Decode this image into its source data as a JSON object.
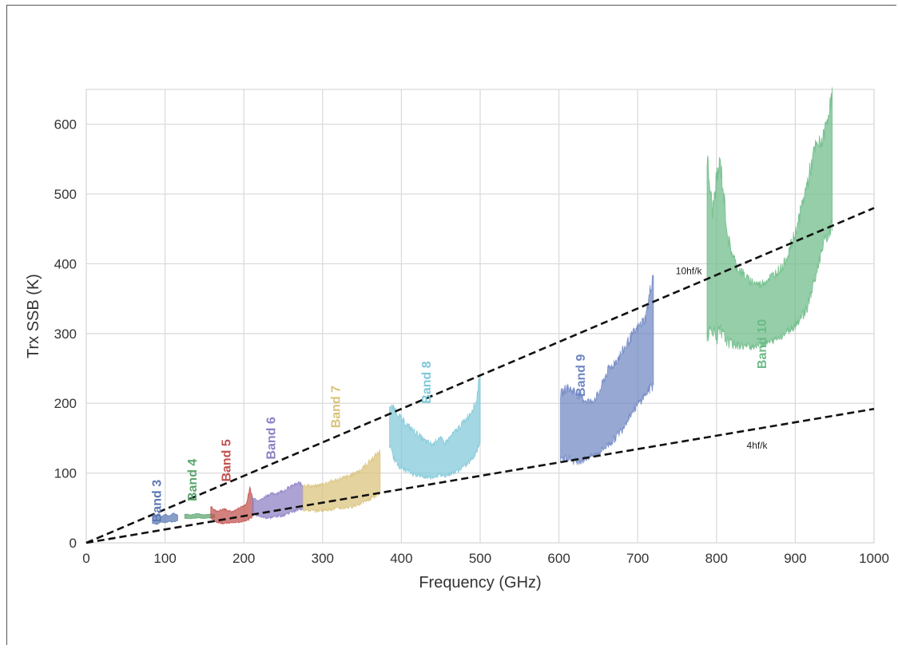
{
  "chart_data": {
    "type": "area",
    "title": "",
    "xlabel": "Frequency  (GHz)",
    "ylabel": "Trx SSB  (K)",
    "xlim": [
      0,
      1000
    ],
    "ylim": [
      0,
      650
    ],
    "xticks": [
      0,
      100,
      200,
      300,
      400,
      500,
      600,
      700,
      800,
      900,
      1000
    ],
    "yticks": [
      0,
      100,
      200,
      300,
      400,
      500,
      600
    ],
    "grid": true,
    "background": "#ffffff",
    "grid_color": "#d9d9d9",
    "reference_lines": [
      {
        "name": "10hf/k",
        "x": [
          0,
          1000
        ],
        "y": [
          0,
          480
        ],
        "style": "dashed",
        "color": "#111111",
        "label_at": [
          730,
          385
        ]
      },
      {
        "name": "4hf/k",
        "x": [
          0,
          1000
        ],
        "y": [
          0,
          192
        ],
        "style": "dashed",
        "color": "#111111",
        "label_at": [
          820,
          135
        ]
      }
    ],
    "series": [
      {
        "name": "Band 3",
        "color": "#5a78b4",
        "label_at": [
          95,
          60
        ],
        "x": [
          84,
          90,
          95,
          100,
          105,
          110,
          116
        ],
        "upper": [
          36,
          40,
          37,
          41,
          38,
          42,
          40
        ],
        "lower": [
          28,
          27,
          30,
          29,
          31,
          30,
          32
        ]
      },
      {
        "name": "Band 4",
        "color": "#5aa56e",
        "label_at": [
          140,
          90
        ],
        "x": [
          125,
          133,
          141,
          150,
          158,
          163
        ],
        "upper": [
          41,
          40,
          42,
          40,
          41,
          40
        ],
        "lower": [
          35,
          35,
          36,
          35,
          36,
          36
        ]
      },
      {
        "name": "Band 5",
        "color": "#c0504d",
        "label_at": [
          183,
          118
        ],
        "x": [
          158,
          165,
          175,
          185,
          195,
          203,
          208,
          212
        ],
        "upper": [
          52,
          45,
          48,
          44,
          50,
          55,
          78,
          60
        ],
        "lower": [
          36,
          30,
          28,
          29,
          30,
          33,
          35,
          40
        ]
      },
      {
        "name": "Band 6",
        "color": "#8c7ec4",
        "label_at": [
          240,
          150
        ],
        "x": [
          211,
          220,
          230,
          240,
          250,
          260,
          270,
          275
        ],
        "upper": [
          65,
          60,
          68,
          70,
          74,
          80,
          85,
          82
        ],
        "lower": [
          42,
          38,
          36,
          38,
          40,
          45,
          48,
          50
        ]
      },
      {
        "name": "Band 7",
        "color": "#d9c27a",
        "label_at": [
          322,
          195
        ],
        "x": [
          275,
          290,
          305,
          320,
          335,
          350,
          362,
          373
        ],
        "upper": [
          82,
          80,
          85,
          90,
          95,
          105,
          118,
          130
        ],
        "lower": [
          48,
          46,
          48,
          50,
          52,
          58,
          65,
          72
        ]
      },
      {
        "name": "Band 8",
        "color": "#7ec8d8",
        "label_at": [
          437,
          230
        ],
        "x": [
          385,
          392,
          400,
          415,
          430,
          440,
          448,
          455,
          470,
          485,
          495,
          500
        ],
        "upper": [
          195,
          190,
          175,
          160,
          145,
          140,
          150,
          142,
          160,
          180,
          200,
          245
        ],
        "lower": [
          140,
          118,
          108,
          100,
          95,
          95,
          98,
          97,
          103,
          115,
          130,
          150
        ]
      },
      {
        "name": "Band 9",
        "color": "#6f86c2",
        "label_at": [
          633,
          240
        ],
        "x": [
          602,
          610,
          620,
          630,
          640,
          650,
          660,
          670,
          680,
          690,
          700,
          710,
          720
        ],
        "upper": [
          210,
          220,
          215,
          205,
          200,
          210,
          240,
          255,
          270,
          290,
          305,
          320,
          385
        ],
        "lower": [
          120,
          125,
          118,
          120,
          125,
          130,
          140,
          150,
          165,
          185,
          200,
          215,
          230
        ]
      },
      {
        "name": "Band 10",
        "color": "#6cbb86",
        "label_at": [
          863,
          285
        ],
        "x": [
          788,
          795,
          800,
          805,
          815,
          825,
          840,
          855,
          870,
          885,
          900,
          915,
          925,
          935,
          940,
          947
        ],
        "upper": [
          545,
          470,
          515,
          540,
          430,
          395,
          375,
          368,
          380,
          395,
          440,
          510,
          560,
          575,
          600,
          640
        ],
        "lower": [
          305,
          310,
          300,
          305,
          290,
          285,
          283,
          285,
          290,
          300,
          315,
          340,
          380,
          430,
          440,
          460
        ]
      }
    ]
  }
}
